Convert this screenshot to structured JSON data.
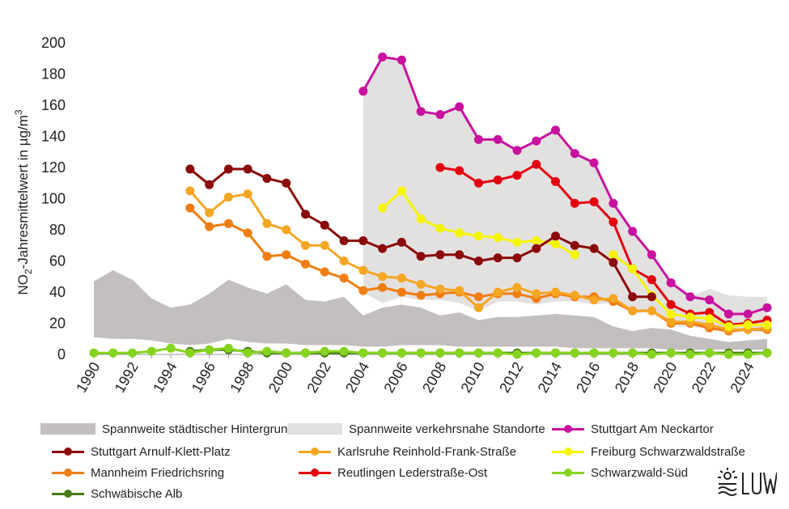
{
  "chart_data": {
    "type": "line",
    "ylabel_main": "NO",
    "ylabel_sub": "2",
    "ylabel_rest": "-Jahresmittelwert  in µg/m",
    "ylabel_sup": "3",
    "ylim": [
      0,
      200
    ],
    "yticks": [
      0,
      20,
      40,
      60,
      80,
      100,
      120,
      140,
      160,
      180,
      200
    ],
    "xlim": [
      1990,
      2025
    ],
    "xticks": [
      1990,
      1992,
      1994,
      1996,
      1998,
      2000,
      2002,
      2004,
      2006,
      2008,
      2010,
      2012,
      2014,
      2016,
      2018,
      2020,
      2022,
      2024
    ],
    "grid": false,
    "legend_position": "bottom",
    "bands": [
      {
        "name": "Spannweite städtischer Hintergrund",
        "color": "#c3bfbf",
        "x": [
          1990,
          1991,
          1992,
          1993,
          1994,
          1995,
          1996,
          1997,
          1998,
          1999,
          2000,
          2001,
          2002,
          2003,
          2004,
          2005,
          2006,
          2007,
          2008,
          2009,
          2010,
          2011,
          2012,
          2013,
          2014,
          2015,
          2016,
          2017,
          2018,
          2019,
          2020,
          2021,
          2022,
          2023,
          2024,
          2025
        ],
        "lower": [
          11,
          10,
          10,
          9,
          7,
          6,
          7,
          10,
          8,
          7,
          7,
          6,
          6,
          6,
          5,
          5,
          6,
          6,
          6,
          5,
          5,
          5,
          5,
          5,
          5,
          4,
          4,
          4,
          4,
          4,
          3,
          3,
          3,
          3,
          3,
          3
        ],
        "upper": [
          47,
          54,
          48,
          36,
          30,
          32,
          39,
          48,
          43,
          39,
          45,
          35,
          34,
          37,
          25,
          30,
          32,
          30,
          25,
          27,
          22,
          24,
          24,
          25,
          26,
          25,
          24,
          18,
          15,
          17,
          16,
          12,
          10,
          8,
          9,
          10
        ]
      },
      {
        "name": "Spannweite verkehrsnahe Standorte",
        "color": "#e3e0e0",
        "x": [
          2004,
          2005,
          2006,
          2007,
          2008,
          2009,
          2010,
          2011,
          2012,
          2013,
          2014,
          2015,
          2016,
          2017,
          2018,
          2019,
          2020,
          2021,
          2022,
          2023,
          2024,
          2025
        ],
        "lower": [
          40,
          33,
          37,
          35,
          35,
          33,
          28,
          34,
          34,
          32,
          34,
          34,
          32,
          33,
          26,
          28,
          18,
          18,
          16,
          14,
          15,
          14
        ],
        "upper": [
          169,
          192,
          189,
          156,
          154,
          159,
          138,
          138,
          131,
          137,
          144,
          129,
          123,
          97,
          79,
          65,
          46,
          37,
          42,
          38,
          37,
          37
        ]
      }
    ],
    "series": [
      {
        "name": "Stuttgart Am Neckartor",
        "color": "#c8119e",
        "x": [
          2004,
          2005,
          2006,
          2007,
          2008,
          2009,
          2010,
          2011,
          2012,
          2013,
          2014,
          2015,
          2016,
          2017,
          2018,
          2019,
          2020,
          2021,
          2022,
          2023,
          2024,
          2025
        ],
        "values": [
          169,
          191,
          189,
          156,
          154,
          159,
          138,
          138,
          131,
          137,
          144,
          129,
          123,
          97,
          79,
          64,
          46,
          37,
          35,
          26,
          26,
          30
        ]
      },
      {
        "name": "Stuttgart Arnulf-Klett-Platz",
        "color": "#8b0a0a",
        "x": [
          1995,
          1996,
          1997,
          1998,
          1999,
          2000,
          2001,
          2002,
          2003,
          2004,
          2005,
          2006,
          2007,
          2008,
          2009,
          2010,
          2011,
          2012,
          2013,
          2014,
          2015,
          2016,
          2017,
          2018,
          2019
        ],
        "values": [
          119,
          109,
          119,
          119,
          113,
          110,
          90,
          83,
          73,
          73,
          68,
          72,
          63,
          64,
          64,
          60,
          62,
          62,
          68,
          76,
          70,
          68,
          59,
          37,
          37
        ]
      },
      {
        "name": "Karlsruhe Reinhold-Frank-Straße",
        "color": "#f5a623",
        "x": [
          1995,
          1996,
          1997,
          1998,
          1999,
          2000,
          2001,
          2002,
          2003,
          2004,
          2005,
          2006,
          2007,
          2008,
          2009,
          2010,
          2011,
          2012,
          2013,
          2014,
          2015,
          2016,
          2017,
          2018,
          2019,
          2020,
          2021,
          2022,
          2023,
          2024,
          2025
        ],
        "values": [
          105,
          91,
          101,
          103,
          84,
          80,
          70,
          70,
          60,
          54,
          50,
          49,
          45,
          42,
          41,
          30,
          40,
          43,
          39,
          40,
          38,
          35,
          36,
          28,
          28,
          21,
          21,
          19,
          16,
          16,
          17
        ]
      },
      {
        "name": "Freiburg Schwarzwaldstraße",
        "color": "#f5f500",
        "x": [
          2005,
          2006,
          2007,
          2008,
          2009,
          2010,
          2011,
          2012,
          2013,
          2014,
          2015,
          2016,
          2017,
          2018,
          2019,
          2020,
          2021,
          2022,
          2023,
          2024,
          2025
        ],
        "values": [
          94,
          105,
          87,
          81,
          78,
          76,
          75,
          72,
          73,
          71,
          64,
          null,
          64,
          55,
          38,
          26,
          24,
          23,
          18,
          19,
          19
        ]
      },
      {
        "name": "Mannheim Friedrichsring",
        "color": "#f07d12",
        "x": [
          1995,
          1996,
          1997,
          1998,
          1999,
          2000,
          2001,
          2002,
          2003,
          2004,
          2005,
          2006,
          2007,
          2008,
          2009,
          2010,
          2011,
          2012,
          2013,
          2014,
          2015,
          2016,
          2017,
          2018,
          2019,
          2020,
          2021,
          2022,
          2023,
          2024,
          2025
        ],
        "values": [
          94,
          82,
          84,
          78,
          63,
          64,
          58,
          53,
          49,
          41,
          43,
          40,
          38,
          39,
          40,
          37,
          39,
          39,
          36,
          39,
          37,
          37,
          34,
          28,
          28,
          20,
          20,
          17,
          15,
          16,
          16
        ]
      },
      {
        "name": "Reutlingen Lederstraße-Ost",
        "color": "#e3000f",
        "x": [
          2008,
          2009,
          2010,
          2011,
          2012,
          2013,
          2014,
          2015,
          2016,
          2017,
          2018,
          2019,
          2020,
          2021,
          2022,
          2023,
          2024,
          2025
        ],
        "values": [
          120,
          118,
          110,
          112,
          115,
          122,
          111,
          97,
          98,
          85,
          55,
          48,
          32,
          26,
          27,
          19,
          20,
          22
        ]
      },
      {
        "name": "Schwarzwald-Süd",
        "color": "#86d41e",
        "x": [
          1990,
          1991,
          1992,
          1993,
          1994,
          1995,
          1996,
          1997,
          1998,
          1999,
          2000,
          2001,
          2002,
          2003,
          2004,
          2005,
          2006,
          2007,
          2008,
          2009,
          2010,
          2011,
          2012,
          2013,
          2014,
          2015,
          2016,
          2017,
          2018,
          2019,
          2020,
          2021,
          2022,
          2023,
          2024,
          2025
        ],
        "values": [
          1,
          1,
          1,
          2,
          4,
          1,
          3,
          4,
          1,
          2,
          1,
          1,
          2,
          2,
          1,
          1,
          1,
          1,
          1,
          1,
          1,
          1,
          0,
          1,
          1,
          1,
          1,
          1,
          1,
          0,
          1,
          0,
          1,
          0,
          0,
          1
        ]
      },
      {
        "name": "Schwäbische Alb",
        "color": "#4a7a18",
        "x": [
          1995,
          1996,
          1997,
          1998,
          1999,
          2000,
          2001,
          2002,
          2003,
          2004,
          2005,
          2006,
          2007,
          2008,
          2009,
          2010,
          2011,
          2012,
          2013,
          2014,
          2015,
          2016,
          2017,
          2018,
          2019,
          2020,
          2021,
          2022,
          2023,
          2024,
          2025
        ],
        "values": [
          2,
          3,
          3,
          2,
          1,
          1,
          1,
          1,
          1,
          1,
          1,
          1,
          1,
          1,
          1,
          1,
          1,
          1,
          1,
          1,
          1,
          1,
          1,
          1,
          1,
          1,
          1,
          1,
          1,
          1,
          1
        ]
      }
    ]
  },
  "legend": [
    {
      "label": "Spannweite städtischer Hintergrund",
      "kind": "area",
      "color": "#c3bfbf"
    },
    {
      "label": "Spannweite verkehrsnahe Standorte",
      "kind": "area",
      "color": "#e3e0e0"
    },
    {
      "label": "Stuttgart Am Neckartor",
      "kind": "line",
      "color": "#c8119e"
    },
    {
      "label": "Stuttgart Arnulf-Klett-Platz",
      "kind": "line",
      "color": "#8b0a0a"
    },
    {
      "label": "Karlsruhe Reinhold-Frank-Straße",
      "kind": "line",
      "color": "#f5a623"
    },
    {
      "label": "Freiburg Schwarzwaldstraße",
      "kind": "line",
      "color": "#f5f500"
    },
    {
      "label": "Mannheim Friedrichsring",
      "kind": "line",
      "color": "#f07d12"
    },
    {
      "label": "Reutlingen Lederstraße-Ost",
      "kind": "line",
      "color": "#e3000f"
    },
    {
      "label": "Schwarzwald-Süd",
      "kind": "line",
      "color": "#86d41e"
    },
    {
      "label": "Schwäbische Alb",
      "kind": "line",
      "color": "#4a7a18"
    }
  ],
  "logo": {
    "text": "LUBW",
    "icon": "sun-waves-icon"
  }
}
